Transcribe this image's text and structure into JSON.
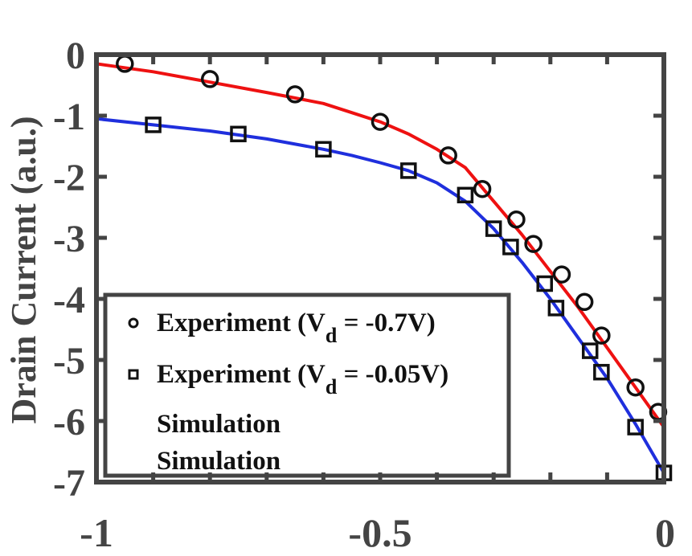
{
  "chart_data": {
    "type": "line",
    "title": "",
    "xlabel": "",
    "ylabel": "Drain Current (a.u.)",
    "xlim": [
      -1,
      0
    ],
    "ylim": [
      -7,
      0
    ],
    "x_ticks": [
      "-1",
      "-0.5",
      "0"
    ],
    "y_ticks": [
      "0",
      "-1",
      "-2",
      "-3",
      "-4",
      "-5",
      "-6",
      "-7"
    ],
    "grid": false,
    "legend_position": "bottom-left",
    "series": [
      {
        "name": "Experiment (V_d = -0.7V)",
        "legend_main": "Experiment (V",
        "legend_sub": "d",
        "legend_tail": " = -0.7V)",
        "marker": "circle",
        "color": "#111111",
        "x": [
          -0.95,
          -0.8,
          -0.65,
          -0.5,
          -0.38,
          -0.32,
          -0.26,
          -0.23,
          -0.18,
          -0.14,
          -0.11,
          -0.05,
          -0.01
        ],
        "y": [
          -0.15,
          -0.4,
          -0.65,
          -1.1,
          -1.65,
          -2.2,
          -2.7,
          -3.1,
          -3.6,
          -4.05,
          -4.6,
          -5.45,
          -5.85
        ]
      },
      {
        "name": "Experiment (V_d = -0.05V)",
        "legend_main": "Experiment (V",
        "legend_sub": "d",
        "legend_tail": " = -0.05V)",
        "marker": "square",
        "color": "#111111",
        "x": [
          -0.9,
          -0.75,
          -0.6,
          -0.45,
          -0.35,
          -0.3,
          -0.27,
          -0.21,
          -0.19,
          -0.13,
          -0.11,
          -0.05,
          0.0
        ],
        "y": [
          -1.15,
          -1.3,
          -1.55,
          -1.9,
          -2.3,
          -2.85,
          -3.15,
          -3.75,
          -4.15,
          -4.85,
          -5.2,
          -6.1,
          -6.85
        ]
      },
      {
        "name": "Simulation",
        "marker": "line",
        "color": "#ee1111",
        "x": [
          -1,
          -0.9,
          -0.8,
          -0.7,
          -0.6,
          -0.55,
          -0.5,
          -0.45,
          -0.4,
          -0.35,
          -0.3,
          -0.25,
          -0.2,
          -0.15,
          -0.1,
          -0.05,
          0.0
        ],
        "y": [
          -0.15,
          -0.28,
          -0.45,
          -0.62,
          -0.8,
          -0.95,
          -1.1,
          -1.3,
          -1.55,
          -1.85,
          -2.4,
          -2.95,
          -3.55,
          -4.15,
          -4.8,
          -5.45,
          -6.1
        ]
      },
      {
        "name": "Simulation",
        "marker": "line",
        "color": "#1f2fdd",
        "x": [
          -1,
          -0.9,
          -0.8,
          -0.7,
          -0.6,
          -0.55,
          -0.5,
          -0.45,
          -0.4,
          -0.35,
          -0.3,
          -0.25,
          -0.2,
          -0.15,
          -0.1,
          -0.05,
          0.0
        ],
        "y": [
          -1.05,
          -1.15,
          -1.25,
          -1.38,
          -1.55,
          -1.65,
          -1.77,
          -1.9,
          -2.1,
          -2.4,
          -2.85,
          -3.4,
          -4.0,
          -4.65,
          -5.3,
          -6.05,
          -6.85
        ]
      }
    ]
  }
}
